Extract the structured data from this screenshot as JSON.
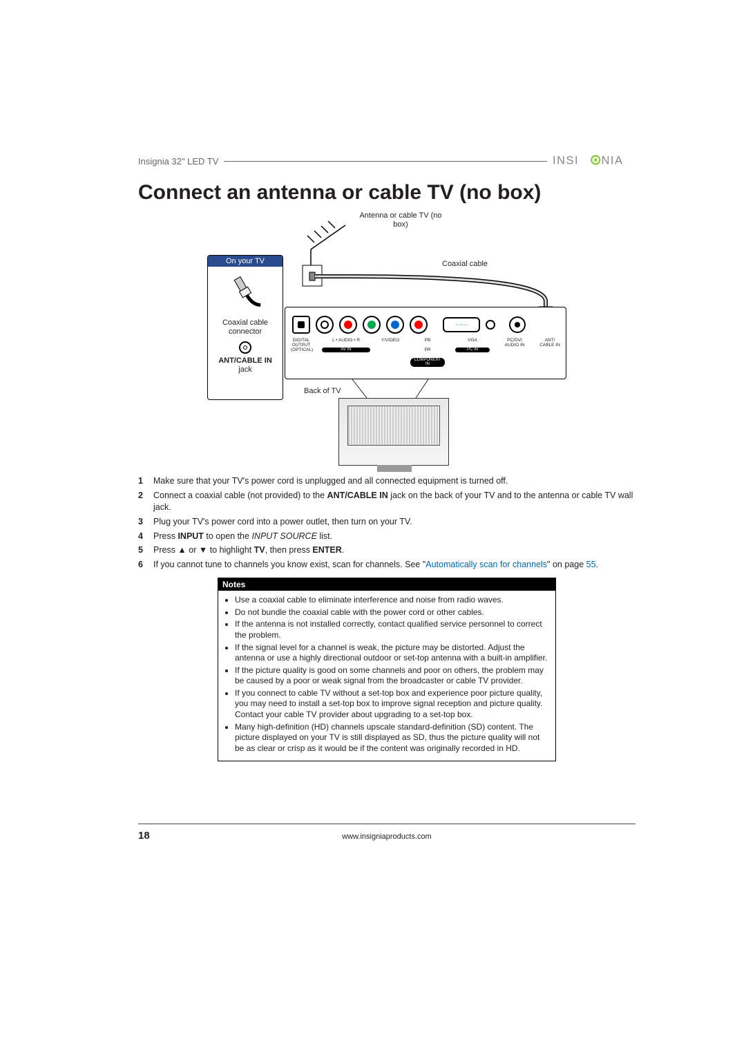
{
  "header": {
    "product": "Insignia 32\" LED TV",
    "brand": "INSIGNIA"
  },
  "title": "Connect an antenna or cable TV (no box)",
  "diagram": {
    "sidebox_title": "On your TV",
    "coax_connector": "Coaxial cable connector",
    "ant_cable_in_bold": "ANT/CABLE IN",
    "jack_word": "jack",
    "antenna_label": "Antenna or cable TV (no box)",
    "coax_label": "Coaxial cable",
    "back_of_tv": "Back of TV",
    "port_labels": {
      "optical": "DIGITAL OUTPUT (OPTICAL)",
      "audio": "L • AUDIO • R",
      "yvideo": "Y/VIDEO",
      "pb": "PB",
      "pr": "PR",
      "avin": "AV IN",
      "component": "COMPONENT IN",
      "vga": "VGA",
      "pcaudio": "PC/DVI AUDIO IN",
      "pcin": "PC IN",
      "ant": "ANT/ CABLE IN"
    },
    "colors": {
      "white": "#ffffff",
      "red": "#ff0000",
      "green": "#00a651",
      "blue": "#0066cc",
      "brand_green": "#8cc63f",
      "brand_gray": "#888888"
    }
  },
  "steps": [
    "Make sure that your TV's power cord is unplugged and all connected equipment is turned off.",
    "Connect a coaxial cable (not provided) to the <b>ANT/CABLE IN</b> jack on the back of your TV and to the antenna or cable TV wall jack.",
    "Plug your TV's power cord into a power outlet, then turn on your TV.",
    "Press <b>INPUT</b> to open the <i>INPUT SOURCE</i> list.",
    "Press ▲ or ▼ to highlight <b>TV</b>, then press <b>ENTER</b>.",
    "If you cannot tune to channels you know exist, scan for channels. See \"<span class='link'>Automatically scan for channels</span>\" on page <span class='link'>55</span>."
  ],
  "notes_header": "Notes",
  "notes": [
    "Use a coaxial cable to eliminate interference and noise from radio waves.",
    "Do not bundle the coaxial cable with the power cord or other cables.",
    "If the antenna is not installed correctly, contact qualified service personnel to correct the problem.",
    "If the signal level for a channel is weak, the picture may be distorted. Adjust the antenna or use a highly directional outdoor or set-top antenna with a built-in amplifier.",
    "If the picture quality is good on some channels and poor on others, the problem may be caused by a poor or weak signal from the broadcaster or cable TV provider.",
    "If you connect to cable TV without a set-top box and experience poor picture quality, you may need to install a set-top box to improve signal reception and picture quality. Contact your cable TV provider about upgrading to a set-top box.",
    "Many high-definition (HD) channels upscale standard-definition (SD) content. The picture displayed on your TV is still displayed as SD, thus the picture quality will not be as clear or crisp as it would be if the content was originally recorded in HD."
  ],
  "footer": {
    "page": "18",
    "url": "www.insigniaproducts.com"
  }
}
